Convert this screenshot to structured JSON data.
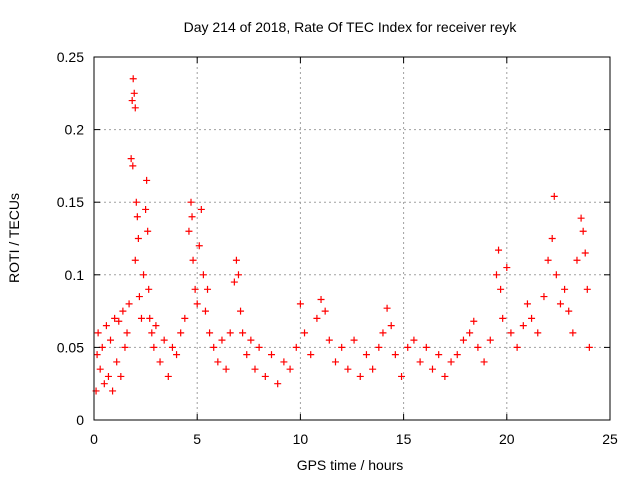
{
  "chart_data": {
    "type": "scatter",
    "title": "Day 214 of 2018, Rate Of TEC Index for receiver reyk",
    "xlabel": "GPS time / hours",
    "ylabel": "ROTI / TECUs",
    "xlim": [
      0,
      25
    ],
    "ylim": [
      0,
      0.25
    ],
    "xticks": [
      0,
      5,
      10,
      15,
      20,
      25
    ],
    "xtick_labels": [
      "0",
      "5",
      "10",
      "15",
      "20",
      "25"
    ],
    "yticks": [
      0,
      0.05,
      0.1,
      0.15,
      0.2,
      0.25
    ],
    "ytick_labels": [
      "0",
      "0.05",
      "0.1",
      "0.15",
      "0.2",
      "0.25"
    ],
    "grid": true,
    "marker": "+",
    "color": "#ff0000",
    "series": [
      {
        "name": "ROTI",
        "points": [
          [
            0.1,
            0.02
          ],
          [
            0.15,
            0.045
          ],
          [
            0.2,
            0.06
          ],
          [
            0.3,
            0.035
          ],
          [
            0.4,
            0.05
          ],
          [
            0.5,
            0.025
          ],
          [
            0.6,
            0.065
          ],
          [
            0.7,
            0.03
          ],
          [
            0.8,
            0.055
          ],
          [
            0.9,
            0.02
          ],
          [
            1.0,
            0.07
          ],
          [
            1.1,
            0.04
          ],
          [
            1.2,
            0.068
          ],
          [
            1.3,
            0.03
          ],
          [
            1.4,
            0.075
          ],
          [
            1.5,
            0.05
          ],
          [
            1.6,
            0.06
          ],
          [
            1.7,
            0.08
          ],
          [
            1.8,
            0.18
          ],
          [
            1.85,
            0.22
          ],
          [
            1.9,
            0.235
          ],
          [
            1.95,
            0.225
          ],
          [
            2.0,
            0.215
          ],
          [
            1.88,
            0.175
          ],
          [
            2.05,
            0.15
          ],
          [
            2.1,
            0.14
          ],
          [
            2.0,
            0.11
          ],
          [
            2.15,
            0.125
          ],
          [
            2.2,
            0.085
          ],
          [
            2.3,
            0.07
          ],
          [
            2.4,
            0.1
          ],
          [
            2.5,
            0.145
          ],
          [
            2.55,
            0.165
          ],
          [
            2.6,
            0.13
          ],
          [
            2.65,
            0.09
          ],
          [
            2.7,
            0.07
          ],
          [
            2.8,
            0.06
          ],
          [
            2.9,
            0.05
          ],
          [
            3.0,
            0.065
          ],
          [
            3.2,
            0.04
          ],
          [
            3.4,
            0.055
          ],
          [
            3.6,
            0.03
          ],
          [
            3.8,
            0.05
          ],
          [
            4.0,
            0.045
          ],
          [
            4.2,
            0.06
          ],
          [
            4.4,
            0.07
          ],
          [
            4.6,
            0.13
          ],
          [
            4.7,
            0.15
          ],
          [
            4.75,
            0.14
          ],
          [
            4.8,
            0.11
          ],
          [
            4.9,
            0.09
          ],
          [
            5.0,
            0.08
          ],
          [
            5.1,
            0.12
          ],
          [
            5.2,
            0.145
          ],
          [
            5.3,
            0.1
          ],
          [
            5.4,
            0.075
          ],
          [
            5.5,
            0.09
          ],
          [
            5.6,
            0.06
          ],
          [
            5.8,
            0.05
          ],
          [
            6.0,
            0.04
          ],
          [
            6.2,
            0.055
          ],
          [
            6.4,
            0.035
          ],
          [
            6.6,
            0.06
          ],
          [
            6.8,
            0.095
          ],
          [
            6.9,
            0.11
          ],
          [
            7.0,
            0.1
          ],
          [
            7.1,
            0.075
          ],
          [
            7.2,
            0.06
          ],
          [
            7.4,
            0.045
          ],
          [
            7.6,
            0.055
          ],
          [
            7.8,
            0.035
          ],
          [
            8.0,
            0.05
          ],
          [
            8.3,
            0.03
          ],
          [
            8.6,
            0.045
          ],
          [
            8.9,
            0.025
          ],
          [
            9.2,
            0.04
          ],
          [
            9.5,
            0.035
          ],
          [
            9.8,
            0.05
          ],
          [
            10.0,
            0.08
          ],
          [
            10.2,
            0.06
          ],
          [
            10.5,
            0.045
          ],
          [
            10.8,
            0.07
          ],
          [
            11.0,
            0.083
          ],
          [
            11.2,
            0.075
          ],
          [
            11.4,
            0.055
          ],
          [
            11.7,
            0.04
          ],
          [
            12.0,
            0.05
          ],
          [
            12.3,
            0.035
          ],
          [
            12.6,
            0.055
          ],
          [
            12.9,
            0.03
          ],
          [
            13.2,
            0.045
          ],
          [
            13.5,
            0.035
          ],
          [
            13.8,
            0.05
          ],
          [
            14.0,
            0.06
          ],
          [
            14.2,
            0.077
          ],
          [
            14.4,
            0.065
          ],
          [
            14.6,
            0.045
          ],
          [
            14.9,
            0.03
          ],
          [
            15.2,
            0.05
          ],
          [
            15.5,
            0.055
          ],
          [
            15.8,
            0.04
          ],
          [
            16.1,
            0.05
          ],
          [
            16.4,
            0.035
          ],
          [
            16.7,
            0.045
          ],
          [
            17.0,
            0.03
          ],
          [
            17.3,
            0.04
          ],
          [
            17.6,
            0.045
          ],
          [
            17.9,
            0.055
          ],
          [
            18.2,
            0.06
          ],
          [
            18.4,
            0.068
          ],
          [
            18.6,
            0.05
          ],
          [
            18.9,
            0.04
          ],
          [
            19.2,
            0.055
          ],
          [
            19.5,
            0.1
          ],
          [
            19.6,
            0.117
          ],
          [
            19.7,
            0.09
          ],
          [
            19.8,
            0.07
          ],
          [
            20.0,
            0.105
          ],
          [
            20.2,
            0.06
          ],
          [
            20.5,
            0.05
          ],
          [
            20.8,
            0.065
          ],
          [
            21.0,
            0.08
          ],
          [
            21.2,
            0.07
          ],
          [
            21.5,
            0.06
          ],
          [
            21.8,
            0.085
          ],
          [
            22.0,
            0.11
          ],
          [
            22.2,
            0.125
          ],
          [
            22.3,
            0.154
          ],
          [
            22.4,
            0.1
          ],
          [
            22.6,
            0.08
          ],
          [
            22.8,
            0.09
          ],
          [
            23.0,
            0.075
          ],
          [
            23.2,
            0.06
          ],
          [
            23.4,
            0.11
          ],
          [
            23.6,
            0.139
          ],
          [
            23.7,
            0.13
          ],
          [
            23.8,
            0.115
          ],
          [
            23.9,
            0.09
          ],
          [
            24.0,
            0.05
          ]
        ]
      }
    ]
  }
}
